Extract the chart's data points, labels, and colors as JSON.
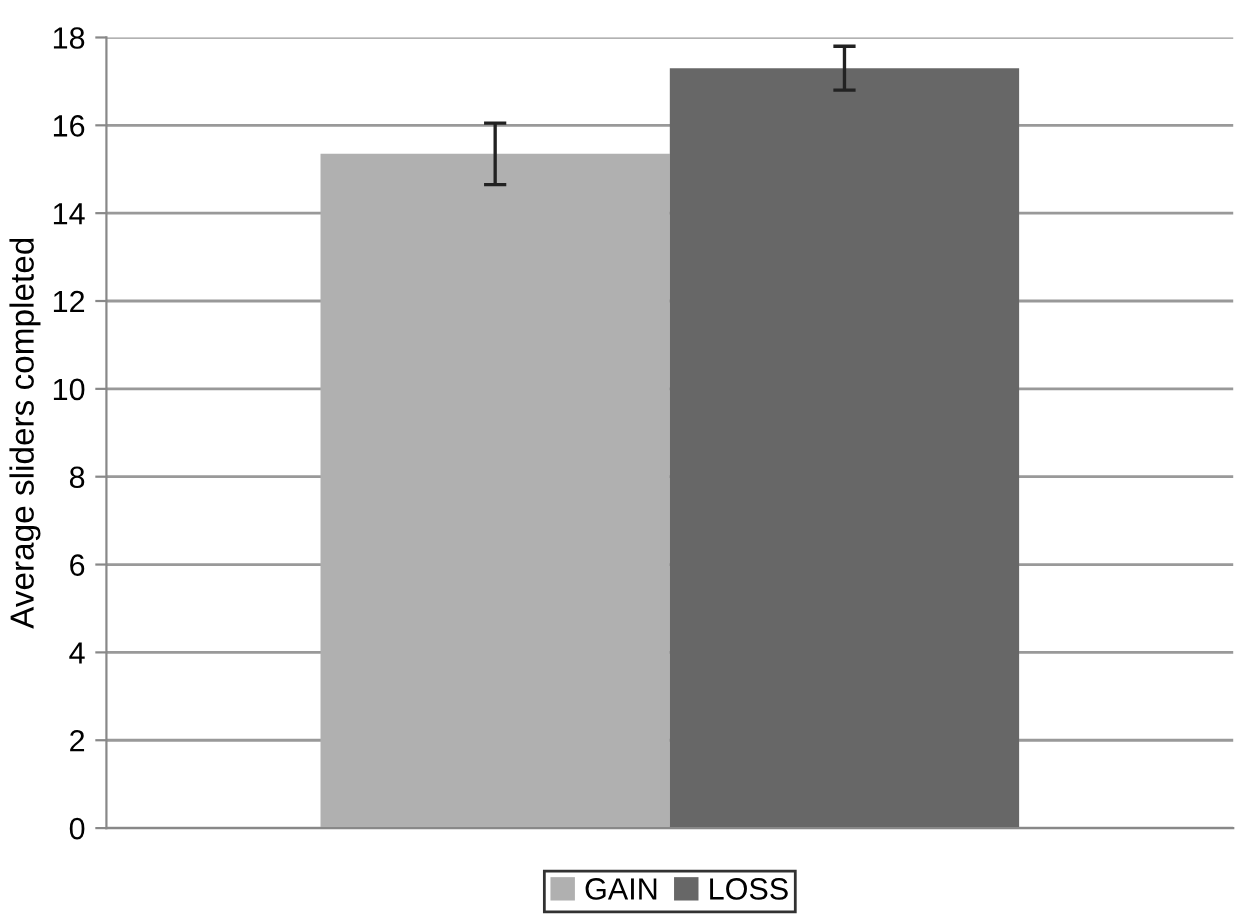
{
  "chart_data": {
    "type": "bar",
    "ylabel": "Average sliders completed",
    "categories": [
      null
    ],
    "series": [
      {
        "name": "GAIN",
        "color": "#b0b0b0",
        "values": [
          15.35
        ],
        "errors": [
          0.7
        ]
      },
      {
        "name": "LOSS",
        "color": "#676767",
        "values": [
          17.3
        ],
        "errors": [
          0.5
        ]
      }
    ],
    "ylim": [
      0,
      18
    ],
    "yticks": [
      0,
      2,
      4,
      6,
      8,
      10,
      12,
      14,
      16,
      18
    ],
    "grid": "y",
    "legend": "bottom"
  }
}
